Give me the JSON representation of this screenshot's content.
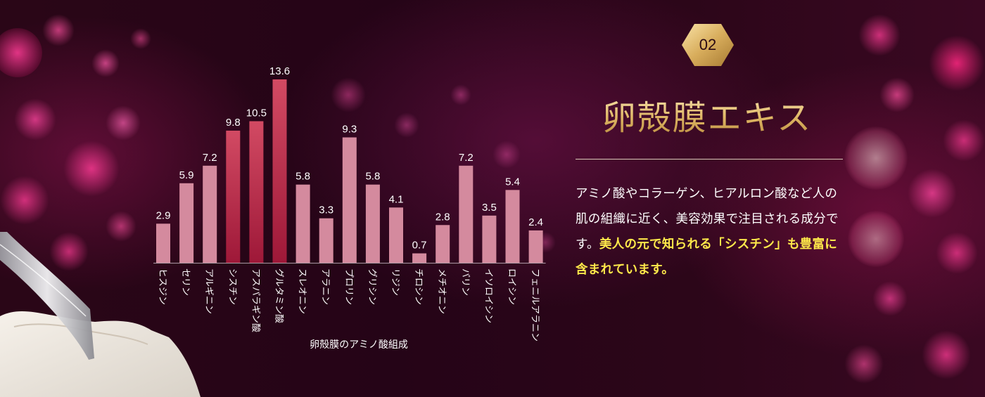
{
  "badge": {
    "number": "02"
  },
  "title": "卵殻膜エキス",
  "description": {
    "plain": "アミノ酸やコラーゲン、ヒアルロン酸など人の肌の組織に近く、美容効果で注目される成分です。",
    "highlight": "美人の元で知られる「シスチン」も豊富に含まれています。"
  },
  "colors": {
    "bar_default": "#d48a9e",
    "bar_highlight_top": "#d24a63",
    "bar_highlight_bottom": "#9e1838",
    "highlight_text": "#ffe94a",
    "title_gold": "#e0b866"
  },
  "chart_data": {
    "type": "bar",
    "title": "卵殻膜のアミノ酸組成",
    "xlabel": "",
    "ylabel": "",
    "categories": [
      "ヒスジン",
      "セリン",
      "アルギニン",
      "シスチン",
      "アスパラギン酸",
      "グルタミン酸",
      "スレオニン",
      "アラニン",
      "プロリン",
      "グリシン",
      "リジン",
      "チロシン",
      "メチオニン",
      "バリン",
      "イソロイシン",
      "ロイシン",
      "フェニルアラニン"
    ],
    "values": [
      2.9,
      5.9,
      7.2,
      9.8,
      10.5,
      13.6,
      5.8,
      3.3,
      9.3,
      5.8,
      4.1,
      0.7,
      2.8,
      7.2,
      3.5,
      5.4,
      2.4
    ],
    "value_labels": [
      "2.9",
      "5.9",
      "7.2",
      "9.8",
      "10.5",
      "13.6",
      "5.8",
      "3.3",
      "9.3",
      "5.8",
      "4.1",
      "0.7",
      "2.8",
      "7.2",
      "3.5",
      "5.4",
      "2.4"
    ],
    "highlighted": [
      "シスチン",
      "アスパラギン酸",
      "グルタミン酸"
    ],
    "ylim": [
      0,
      13.6
    ],
    "grid": false,
    "legend": "none"
  }
}
